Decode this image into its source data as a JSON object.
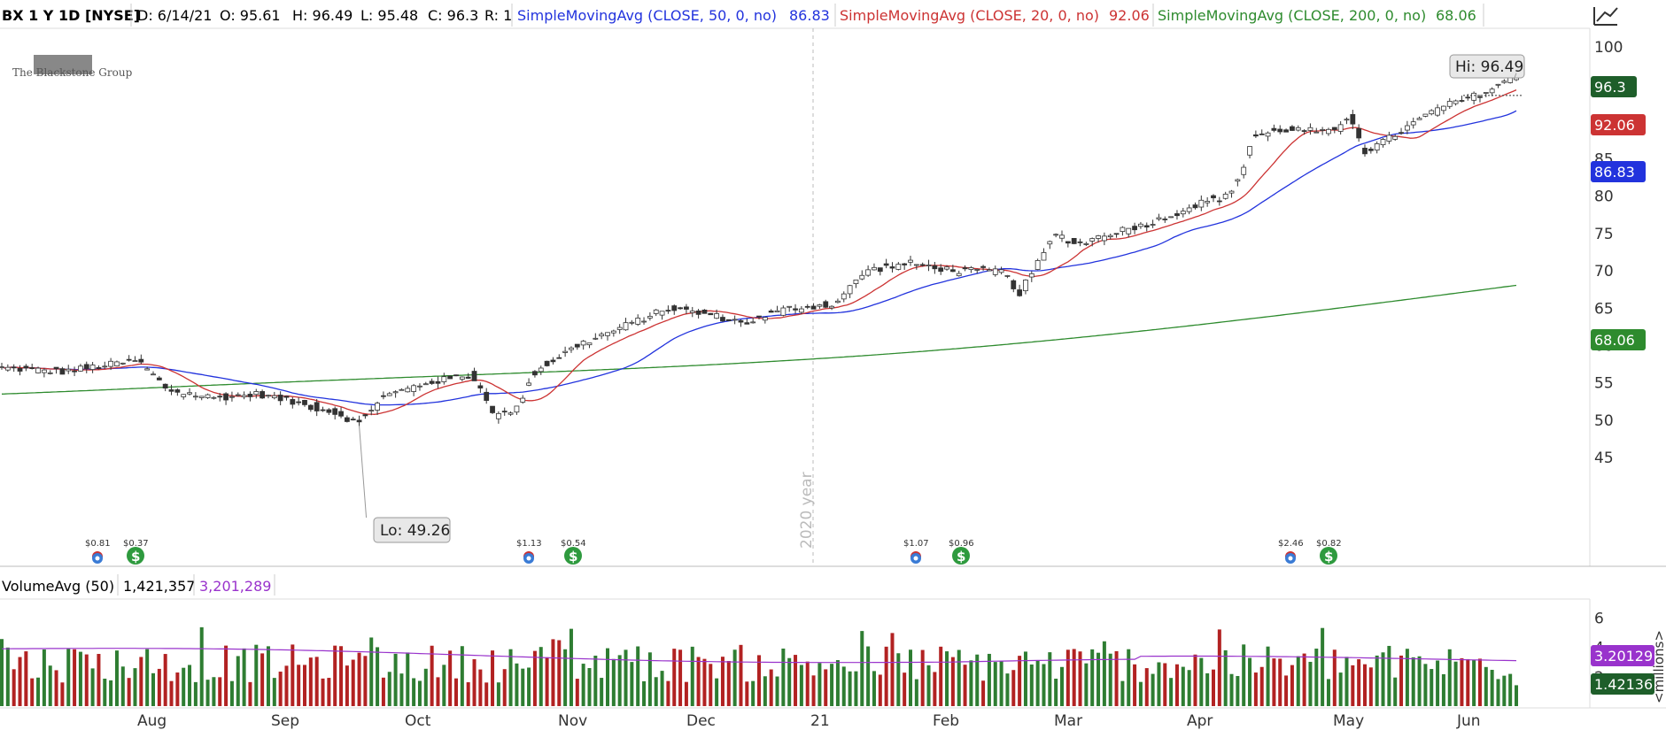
{
  "header": {
    "symbol": "BX 1 Y 1D [NYSE]",
    "date": "D: 6/14/21",
    "open": "O: 95.61",
    "high": "H: 96.49",
    "low": "L: 95.48",
    "close": "C: 96.3",
    "r": "R: 1",
    "sma50_label": "SimpleMovingAvg (CLOSE, 50, 0, no)",
    "sma50_value": "86.83",
    "sma20_label": "SimpleMovingAvg (CLOSE, 20, 0, no)",
    "sma20_value": "92.06",
    "sma200_label": "SimpleMovingAvg (CLOSE, 200, 0, no)",
    "sma200_value": "68.06"
  },
  "volume_header": {
    "label": "VolumeAvg (50)",
    "volume": "1,421,357",
    "avg": "3,201,289"
  },
  "logo_text": "The Blackstone Group",
  "colors": {
    "sma50": "#2233dd",
    "sma20": "#cc3333",
    "sma200": "#2e8b2e",
    "up": "#2e7d32",
    "down": "#b22222",
    "volavg": "#9933cc"
  },
  "chart_data": {
    "type": "candlestick",
    "price_ylim": [
      43,
      103
    ],
    "price_ticks": [
      "100",
      "95",
      "90",
      "85",
      "80",
      "75",
      "70",
      "65",
      "60",
      "55",
      "50",
      "45"
    ],
    "x_labels": [
      "Aug",
      "Sep",
      "Oct",
      "Nov",
      "Dec",
      "21",
      "Feb",
      "Mar",
      "Apr",
      "May",
      "Jun"
    ],
    "year_marker": "2020 year",
    "hi_label": "Hi: 96.49",
    "lo_label": "Lo: 49.26",
    "price_badges": [
      {
        "series": "close",
        "value": 96.3,
        "text": "96.3"
      },
      {
        "series": "sma20",
        "value": 92.06,
        "text": "92.06"
      },
      {
        "series": "sma50",
        "value": 86.83,
        "text": "86.83"
      },
      {
        "series": "sma200",
        "value": 68.06,
        "text": "68.06"
      }
    ],
    "events": [
      {
        "month": "Jul",
        "dividend": "$0.81",
        "earnings": "$0.37"
      },
      {
        "month": "Oct",
        "dividend": "$1.13",
        "earnings": "$0.54"
      },
      {
        "month": "Jan",
        "dividend": "$1.07",
        "earnings": "$0.96"
      },
      {
        "month": "Apr",
        "dividend": "$2.46",
        "earnings": "$0.82"
      }
    ],
    "close_anchors": [
      [
        0,
        57
      ],
      [
        20,
        56.5
      ],
      [
        45,
        58
      ],
      [
        55,
        54
      ],
      [
        70,
        53
      ],
      [
        85,
        53.5
      ],
      [
        100,
        52
      ],
      [
        110,
        51
      ],
      [
        118,
        49.5
      ],
      [
        125,
        53
      ],
      [
        140,
        55
      ],
      [
        155,
        56
      ],
      [
        160,
        53
      ],
      [
        163,
        50.5
      ],
      [
        170,
        51.5
      ],
      [
        175,
        56
      ],
      [
        180,
        57.5
      ],
      [
        190,
        60
      ],
      [
        205,
        62.5
      ],
      [
        220,
        65
      ],
      [
        235,
        64
      ],
      [
        245,
        63
      ],
      [
        260,
        65
      ],
      [
        275,
        65.5
      ],
      [
        285,
        70
      ],
      [
        300,
        71
      ],
      [
        315,
        70
      ],
      [
        330,
        70
      ],
      [
        336,
        67
      ],
      [
        342,
        71
      ],
      [
        348,
        75
      ],
      [
        355,
        73.5
      ],
      [
        365,
        75
      ],
      [
        380,
        76.5
      ],
      [
        395,
        79
      ],
      [
        405,
        80
      ],
      [
        410,
        84
      ],
      [
        413,
        88
      ],
      [
        425,
        89
      ],
      [
        440,
        88.5
      ],
      [
        445,
        91
      ],
      [
        450,
        86
      ],
      [
        455,
        87
      ],
      [
        465,
        89.5
      ],
      [
        475,
        92
      ],
      [
        480,
        92.5
      ],
      [
        490,
        94
      ],
      [
        500,
        96.3
      ]
    ],
    "volume_ticks": [
      "6",
      "4",
      "2"
    ],
    "volume_ylim": [
      0,
      6.5
    ],
    "volume_badges": [
      {
        "series": "avg",
        "value": 3.20129,
        "text": "3.20129"
      },
      {
        "series": "volume",
        "value": 1.42136,
        "text": "1.42136"
      }
    ],
    "volume_unit": "<millions>"
  }
}
